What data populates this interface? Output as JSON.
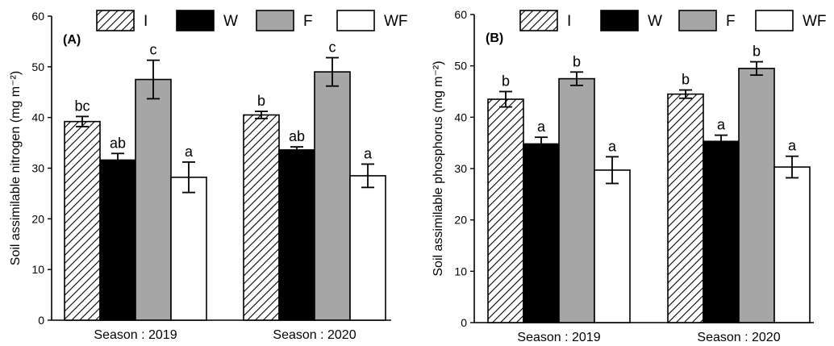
{
  "colors": {
    "I": "#ffffff",
    "W": "#000000",
    "F": "#a6a6a6",
    "WF": "#ffffff",
    "axis": "#000000"
  },
  "chart_data": [
    {
      "type": "bar",
      "panel_label": "(A)",
      "ylabel": "Soil assimilable nitrogen (mg m⁻²)",
      "ylim": [
        0,
        60
      ],
      "yticks": [
        0,
        10,
        20,
        30,
        40,
        50,
        60
      ],
      "categories": [
        "Season : 2019",
        "Season : 2020"
      ],
      "legend": {
        "placement": "top",
        "entries": [
          "I",
          "W",
          "F",
          "WF"
        ]
      },
      "series": [
        {
          "name": "I",
          "pattern": "hatched",
          "values": [
            39.2,
            40.5
          ],
          "errors": [
            1.0,
            0.7
          ],
          "labels": [
            "bc",
            "b"
          ]
        },
        {
          "name": "W",
          "pattern": "solid-black",
          "values": [
            31.6,
            33.6
          ],
          "errors": [
            1.3,
            0.6
          ],
          "labels": [
            "ab",
            "ab"
          ]
        },
        {
          "name": "F",
          "pattern": "solid-gray",
          "values": [
            47.5,
            49.0
          ],
          "errors": [
            3.8,
            2.8
          ],
          "labels": [
            "c",
            "c"
          ]
        },
        {
          "name": "WF",
          "pattern": "solid-white",
          "values": [
            28.2,
            28.5
          ],
          "errors": [
            3.0,
            2.3
          ],
          "labels": [
            "a",
            "a"
          ]
        }
      ]
    },
    {
      "type": "bar",
      "panel_label": "(B)",
      "ylabel": "Soil assimilable phosphorus (mg m⁻²)",
      "ylim": [
        0,
        60
      ],
      "yticks": [
        0,
        10,
        20,
        30,
        40,
        50,
        60
      ],
      "categories": [
        "Season : 2019",
        "Season : 2020"
      ],
      "legend": {
        "placement": "top",
        "entries": [
          "I",
          "W",
          "F",
          "WF"
        ]
      },
      "series": [
        {
          "name": "I",
          "pattern": "hatched",
          "values": [
            43.5,
            44.5
          ],
          "errors": [
            1.5,
            0.8
          ],
          "labels": [
            "b",
            "b"
          ]
        },
        {
          "name": "W",
          "pattern": "solid-black",
          "values": [
            34.8,
            35.3
          ],
          "errors": [
            1.3,
            1.2
          ],
          "labels": [
            "a",
            "a"
          ]
        },
        {
          "name": "F",
          "pattern": "solid-gray",
          "values": [
            47.5,
            49.5
          ],
          "errors": [
            1.3,
            1.3
          ],
          "labels": [
            "b",
            "b"
          ]
        },
        {
          "name": "WF",
          "pattern": "solid-white",
          "values": [
            29.7,
            30.3
          ],
          "errors": [
            2.6,
            2.1
          ],
          "labels": [
            "a",
            "a"
          ]
        }
      ]
    }
  ]
}
